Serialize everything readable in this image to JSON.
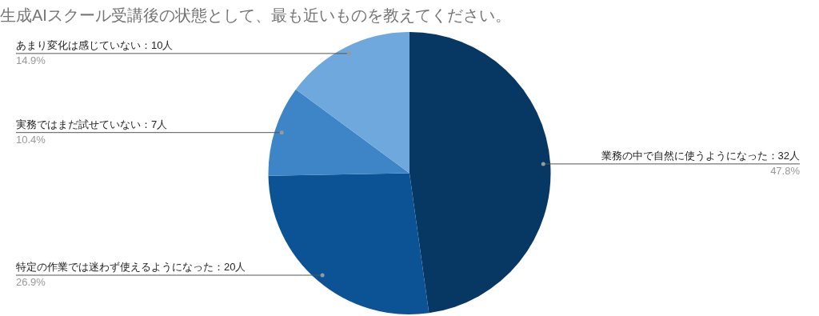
{
  "chart_data": {
    "type": "pie",
    "title": "生成AIスクール受講後の状態として、最も近いものを教えてください。",
    "categories": [
      "業務の中で自然に使うようになった：32人",
      "特定の作業では迷わず使えるようになった：20人",
      "実務ではまだ試せていない：7人",
      "あまり変化は感じていない：10人"
    ],
    "values": [
      47.8,
      26.9,
      10.4,
      14.9
    ],
    "colors": [
      "#073763",
      "#0b5394",
      "#3d85c6",
      "#6fa8dc"
    ],
    "value_labels": [
      "47.8%",
      "26.9%",
      "10.4%",
      "14.9%"
    ],
    "legend": false
  }
}
